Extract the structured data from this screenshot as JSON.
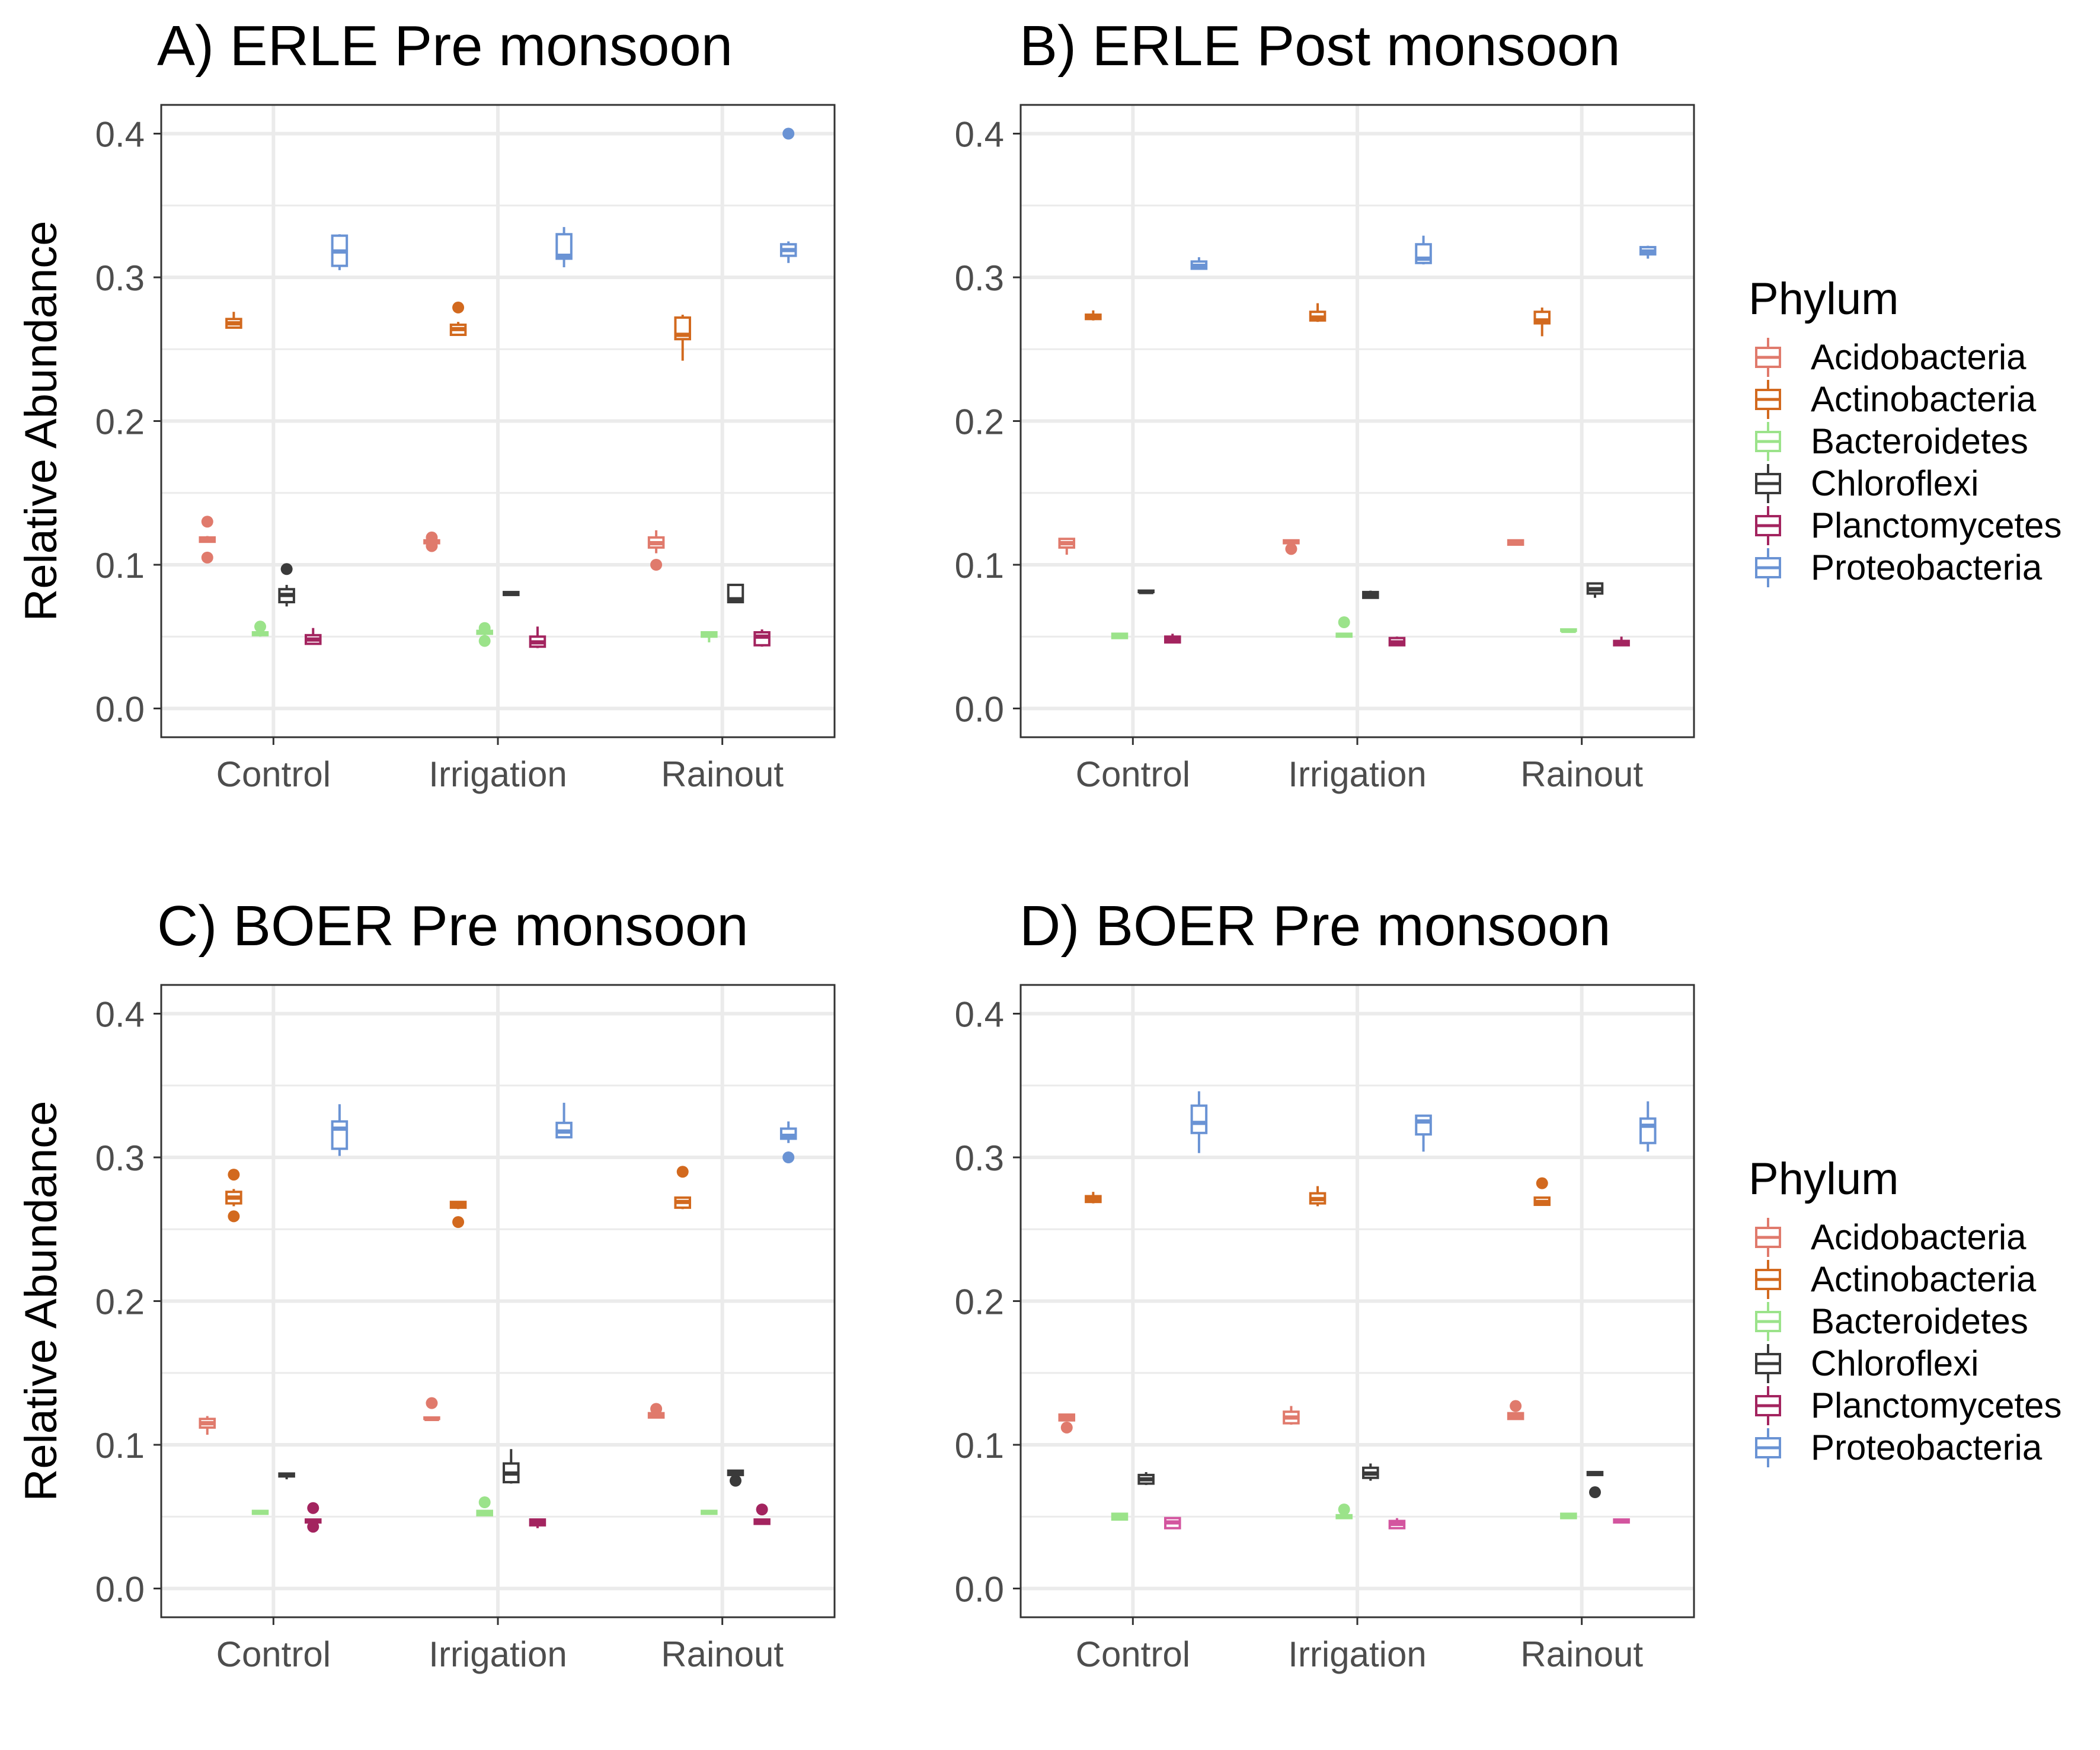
{
  "chart_data": [
    {
      "type": "box",
      "title": "A) ERLE Pre monsoon",
      "xlabel": "",
      "ylabel": "Relative Abundance",
      "ylim": [
        -0.02,
        0.42
      ],
      "yticks": [
        "0.0",
        "0.1",
        "0.2",
        "0.3",
        "0.4"
      ],
      "categories": [
        "Control",
        "Irrigation",
        "Rainout"
      ],
      "legend": {
        "title": "Phylum",
        "position": "right"
      },
      "series": [
        {
          "name": "Acidobacteria",
          "boxes": [
            {
              "min": 0.116,
              "q1": 0.116,
              "median": 0.117,
              "q3": 0.119,
              "max": 0.12,
              "outliers": [
                0.13,
                0.105
              ]
            },
            {
              "min": 0.115,
              "q1": 0.115,
              "median": 0.116,
              "q3": 0.117,
              "max": 0.117,
              "outliers": [
                0.119,
                0.113
              ]
            },
            {
              "min": 0.108,
              "q1": 0.112,
              "median": 0.115,
              "q3": 0.119,
              "max": 0.124,
              "outliers": [
                0.1
              ]
            }
          ]
        },
        {
          "name": "Actinobacteria",
          "boxes": [
            {
              "min": 0.265,
              "q1": 0.265,
              "median": 0.268,
              "q3": 0.271,
              "max": 0.276,
              "outliers": []
            },
            {
              "min": 0.26,
              "q1": 0.26,
              "median": 0.264,
              "q3": 0.267,
              "max": 0.269,
              "outliers": [
                0.279
              ]
            },
            {
              "min": 0.242,
              "q1": 0.257,
              "median": 0.26,
              "q3": 0.272,
              "max": 0.274,
              "outliers": []
            }
          ]
        },
        {
          "name": "Bacteroidetes",
          "boxes": [
            {
              "min": 0.05,
              "q1": 0.051,
              "median": 0.052,
              "q3": 0.053,
              "max": 0.055,
              "outliers": [
                0.057
              ]
            },
            {
              "min": 0.051,
              "q1": 0.052,
              "median": 0.053,
              "q3": 0.054,
              "max": 0.054,
              "outliers": [
                0.047,
                0.056
              ]
            },
            {
              "min": 0.046,
              "q1": 0.05,
              "median": 0.051,
              "q3": 0.053,
              "max": 0.053,
              "outliers": []
            }
          ]
        },
        {
          "name": "Chloroflexi",
          "boxes": [
            {
              "min": 0.071,
              "q1": 0.074,
              "median": 0.079,
              "q3": 0.083,
              "max": 0.086,
              "outliers": [
                0.097
              ]
            },
            {
              "min": 0.079,
              "q1": 0.079,
              "median": 0.08,
              "q3": 0.081,
              "max": 0.081,
              "outliers": []
            },
            {
              "min": 0.074,
              "q1": 0.074,
              "median": 0.076,
              "q3": 0.086,
              "max": 0.086,
              "outliers": []
            }
          ]
        },
        {
          "name": "Planctomycetes",
          "boxes": [
            {
              "min": 0.045,
              "q1": 0.045,
              "median": 0.048,
              "q3": 0.051,
              "max": 0.056,
              "outliers": []
            },
            {
              "min": 0.042,
              "q1": 0.043,
              "median": 0.046,
              "q3": 0.05,
              "max": 0.057,
              "outliers": []
            },
            {
              "min": 0.043,
              "q1": 0.044,
              "median": 0.05,
              "q3": 0.053,
              "max": 0.055,
              "outliers": []
            }
          ]
        },
        {
          "name": "Proteobacteria",
          "boxes": [
            {
              "min": 0.305,
              "q1": 0.308,
              "median": 0.318,
              "q3": 0.329,
              "max": 0.33,
              "outliers": []
            },
            {
              "min": 0.307,
              "q1": 0.313,
              "median": 0.315,
              "q3": 0.33,
              "max": 0.335,
              "outliers": []
            },
            {
              "min": 0.31,
              "q1": 0.315,
              "median": 0.319,
              "q3": 0.323,
              "max": 0.325,
              "outliers": [
                0.4
              ]
            }
          ]
        }
      ]
    },
    {
      "type": "box",
      "title": "B) ERLE Post monsoon",
      "xlabel": "",
      "ylabel": "",
      "ylim": [
        -0.02,
        0.42
      ],
      "yticks": [
        "0.0",
        "0.1",
        "0.2",
        "0.3",
        "0.4"
      ],
      "categories": [
        "Control",
        "Irrigation",
        "Rainout"
      ],
      "legend": {
        "title": "Phylum",
        "position": "right"
      },
      "series": [
        {
          "name": "Acidobacteria",
          "boxes": [
            {
              "min": 0.107,
              "q1": 0.112,
              "median": 0.115,
              "q3": 0.118,
              "max": 0.118,
              "outliers": []
            },
            {
              "min": 0.114,
              "q1": 0.115,
              "median": 0.116,
              "q3": 0.117,
              "max": 0.117,
              "outliers": [
                0.111
              ]
            },
            {
              "min": 0.114,
              "q1": 0.114,
              "median": 0.115,
              "q3": 0.117,
              "max": 0.117,
              "outliers": []
            }
          ]
        },
        {
          "name": "Actinobacteria",
          "boxes": [
            {
              "min": 0.27,
              "q1": 0.271,
              "median": 0.273,
              "q3": 0.274,
              "max": 0.277,
              "outliers": []
            },
            {
              "min": 0.269,
              "q1": 0.27,
              "median": 0.272,
              "q3": 0.276,
              "max": 0.282,
              "outliers": []
            },
            {
              "min": 0.259,
              "q1": 0.268,
              "median": 0.27,
              "q3": 0.276,
              "max": 0.279,
              "outliers": []
            }
          ]
        },
        {
          "name": "Bacteroidetes",
          "boxes": [
            {
              "min": 0.049,
              "q1": 0.049,
              "median": 0.05,
              "q3": 0.052,
              "max": 0.052,
              "outliers": []
            },
            {
              "min": 0.05,
              "q1": 0.05,
              "median": 0.051,
              "q3": 0.052,
              "max": 0.052,
              "outliers": [
                0.06
              ]
            },
            {
              "min": 0.054,
              "q1": 0.054,
              "median": 0.054,
              "q3": 0.055,
              "max": 0.055,
              "outliers": []
            }
          ]
        },
        {
          "name": "Chloroflexi",
          "boxes": [
            {
              "min": 0.08,
              "q1": 0.081,
              "median": 0.081,
              "q3": 0.082,
              "max": 0.082,
              "outliers": []
            },
            {
              "min": 0.077,
              "q1": 0.077,
              "median": 0.079,
              "q3": 0.081,
              "max": 0.082,
              "outliers": []
            },
            {
              "min": 0.077,
              "q1": 0.08,
              "median": 0.083,
              "q3": 0.087,
              "max": 0.087,
              "outliers": []
            }
          ]
        },
        {
          "name": "Planctomycetes",
          "boxes": [
            {
              "min": 0.046,
              "q1": 0.046,
              "median": 0.048,
              "q3": 0.05,
              "max": 0.052,
              "outliers": []
            },
            {
              "min": 0.044,
              "q1": 0.044,
              "median": 0.046,
              "q3": 0.049,
              "max": 0.05,
              "outliers": []
            },
            {
              "min": 0.044,
              "q1": 0.044,
              "median": 0.046,
              "q3": 0.047,
              "max": 0.05,
              "outliers": []
            }
          ]
        },
        {
          "name": "Proteobacteria",
          "boxes": [
            {
              "min": 0.306,
              "q1": 0.306,
              "median": 0.308,
              "q3": 0.311,
              "max": 0.314,
              "outliers": []
            },
            {
              "min": 0.309,
              "q1": 0.31,
              "median": 0.313,
              "q3": 0.323,
              "max": 0.329,
              "outliers": []
            },
            {
              "min": 0.313,
              "q1": 0.316,
              "median": 0.318,
              "q3": 0.321,
              "max": 0.322,
              "outliers": []
            }
          ]
        }
      ]
    },
    {
      "type": "box",
      "title": "C) BOER Pre monsoon",
      "xlabel": "",
      "ylabel": "Relative Abundance",
      "ylim": [
        -0.02,
        0.42
      ],
      "yticks": [
        "0.0",
        "0.1",
        "0.2",
        "0.3",
        "0.4"
      ],
      "categories": [
        "Control",
        "Irrigation",
        "Rainout"
      ],
      "legend": {
        "title": "Phylum",
        "position": "right"
      },
      "series": [
        {
          "name": "Acidobacteria",
          "boxes": [
            {
              "min": 0.107,
              "q1": 0.112,
              "median": 0.115,
              "q3": 0.118,
              "max": 0.12,
              "outliers": []
            },
            {
              "min": 0.117,
              "q1": 0.118,
              "median": 0.118,
              "q3": 0.119,
              "max": 0.119,
              "outliers": [
                0.129
              ]
            },
            {
              "min": 0.119,
              "q1": 0.119,
              "median": 0.12,
              "q3": 0.122,
              "max": 0.122,
              "outliers": [
                0.125
              ]
            }
          ]
        },
        {
          "name": "Actinobacteria",
          "boxes": [
            {
              "min": 0.266,
              "q1": 0.268,
              "median": 0.272,
              "q3": 0.276,
              "max": 0.278,
              "outliers": [
                0.288,
                0.259
              ]
            },
            {
              "min": 0.264,
              "q1": 0.265,
              "median": 0.267,
              "q3": 0.269,
              "max": 0.269,
              "outliers": [
                0.255
              ]
            },
            {
              "min": 0.264,
              "q1": 0.265,
              "median": 0.269,
              "q3": 0.272,
              "max": 0.272,
              "outliers": [
                0.29
              ]
            }
          ]
        },
        {
          "name": "Bacteroidetes",
          "boxes": [
            {
              "min": 0.052,
              "q1": 0.052,
              "median": 0.053,
              "q3": 0.054,
              "max": 0.054,
              "outliers": []
            },
            {
              "min": 0.051,
              "q1": 0.051,
              "median": 0.052,
              "q3": 0.054,
              "max": 0.054,
              "outliers": [
                0.06
              ]
            },
            {
              "min": 0.052,
              "q1": 0.052,
              "median": 0.053,
              "q3": 0.054,
              "max": 0.054,
              "outliers": []
            }
          ]
        },
        {
          "name": "Chloroflexi",
          "boxes": [
            {
              "min": 0.076,
              "q1": 0.078,
              "median": 0.079,
              "q3": 0.08,
              "max": 0.08,
              "outliers": []
            },
            {
              "min": 0.073,
              "q1": 0.074,
              "median": 0.08,
              "q3": 0.087,
              "max": 0.097,
              "outliers": []
            },
            {
              "min": 0.079,
              "q1": 0.079,
              "median": 0.08,
              "q3": 0.082,
              "max": 0.082,
              "outliers": [
                0.075
              ]
            }
          ]
        },
        {
          "name": "Planctomycetes",
          "boxes": [
            {
              "min": 0.045,
              "q1": 0.046,
              "median": 0.047,
              "q3": 0.048,
              "max": 0.048,
              "outliers": [
                0.056,
                0.043
              ]
            },
            {
              "min": 0.042,
              "q1": 0.044,
              "median": 0.046,
              "q3": 0.048,
              "max": 0.048,
              "outliers": []
            },
            {
              "min": 0.045,
              "q1": 0.045,
              "median": 0.046,
              "q3": 0.048,
              "max": 0.048,
              "outliers": [
                0.055
              ]
            }
          ]
        },
        {
          "name": "Proteobacteria",
          "boxes": [
            {
              "min": 0.301,
              "q1": 0.306,
              "median": 0.32,
              "q3": 0.325,
              "max": 0.337,
              "outliers": []
            },
            {
              "min": 0.314,
              "q1": 0.314,
              "median": 0.318,
              "q3": 0.324,
              "max": 0.338,
              "outliers": []
            },
            {
              "min": 0.31,
              "q1": 0.313,
              "median": 0.315,
              "q3": 0.32,
              "max": 0.325,
              "outliers": [
                0.3
              ]
            }
          ]
        }
      ]
    },
    {
      "type": "box",
      "title": "D) BOER Pre monsoon",
      "xlabel": "",
      "ylabel": "",
      "ylim": [
        -0.02,
        0.42
      ],
      "yticks": [
        "0.0",
        "0.1",
        "0.2",
        "0.3",
        "0.4"
      ],
      "categories": [
        "Control",
        "Irrigation",
        "Rainout"
      ],
      "legend": {
        "title": "Phylum",
        "position": "right"
      },
      "series": [
        {
          "name": "Acidobacteria",
          "boxes": [
            {
              "min": 0.117,
              "q1": 0.117,
              "median": 0.119,
              "q3": 0.121,
              "max": 0.121,
              "outliers": [
                0.112
              ]
            },
            {
              "min": 0.114,
              "q1": 0.115,
              "median": 0.119,
              "q3": 0.123,
              "max": 0.127,
              "outliers": []
            },
            {
              "min": 0.118,
              "q1": 0.118,
              "median": 0.12,
              "q3": 0.122,
              "max": 0.122,
              "outliers": [
                0.127
              ]
            }
          ]
        },
        {
          "name": "Actinobacteria",
          "boxes": [
            {
              "min": 0.268,
              "q1": 0.269,
              "median": 0.271,
              "q3": 0.273,
              "max": 0.276,
              "outliers": []
            },
            {
              "min": 0.266,
              "q1": 0.268,
              "median": 0.271,
              "q3": 0.275,
              "max": 0.28,
              "outliers": []
            },
            {
              "min": 0.267,
              "q1": 0.267,
              "median": 0.269,
              "q3": 0.272,
              "max": 0.272,
              "outliers": [
                0.282
              ]
            }
          ]
        },
        {
          "name": "Bacteroidetes",
          "boxes": [
            {
              "min": 0.048,
              "q1": 0.048,
              "median": 0.05,
              "q3": 0.052,
              "max": 0.052,
              "outliers": []
            },
            {
              "min": 0.049,
              "q1": 0.049,
              "median": 0.05,
              "q3": 0.051,
              "max": 0.051,
              "outliers": [
                0.055
              ]
            },
            {
              "min": 0.049,
              "q1": 0.049,
              "median": 0.05,
              "q3": 0.052,
              "max": 0.052,
              "outliers": []
            }
          ]
        },
        {
          "name": "Chloroflexi",
          "boxes": [
            {
              "min": 0.072,
              "q1": 0.073,
              "median": 0.076,
              "q3": 0.079,
              "max": 0.081,
              "outliers": []
            },
            {
              "min": 0.075,
              "q1": 0.077,
              "median": 0.08,
              "q3": 0.084,
              "max": 0.087,
              "outliers": []
            },
            {
              "min": 0.079,
              "q1": 0.079,
              "median": 0.08,
              "q3": 0.081,
              "max": 0.081,
              "outliers": [
                0.067
              ]
            }
          ]
        },
        {
          "name": "Planctomycetes",
          "boxes": [
            {
              "min": 0.042,
              "q1": 0.042,
              "median": 0.046,
              "q3": 0.049,
              "max": 0.049,
              "outliers": []
            },
            {
              "min": 0.042,
              "q1": 0.042,
              "median": 0.045,
              "q3": 0.047,
              "max": 0.049,
              "outliers": []
            },
            {
              "min": 0.046,
              "q1": 0.046,
              "median": 0.047,
              "q3": 0.048,
              "max": 0.048,
              "outliers": []
            }
          ]
        },
        {
          "name": "Proteobacteria",
          "boxes": [
            {
              "min": 0.303,
              "q1": 0.317,
              "median": 0.324,
              "q3": 0.336,
              "max": 0.346,
              "outliers": []
            },
            {
              "min": 0.304,
              "q1": 0.316,
              "median": 0.325,
              "q3": 0.329,
              "max": 0.329,
              "outliers": []
            },
            {
              "min": 0.304,
              "q1": 0.31,
              "median": 0.322,
              "q3": 0.327,
              "max": 0.339,
              "outliers": []
            }
          ]
        }
      ]
    }
  ],
  "colors": {
    "Acidobacteria": "#e07a6c",
    "Actinobacteria": "#d2691e",
    "Bacteroidetes": "#9be38a",
    "Chloroflexi": "#3a3a3a",
    "Planctomycetes": "#a3245f",
    "Proteobacteria": "#6a93d4",
    "planctomycetes_panel_d": "#d3559f"
  }
}
